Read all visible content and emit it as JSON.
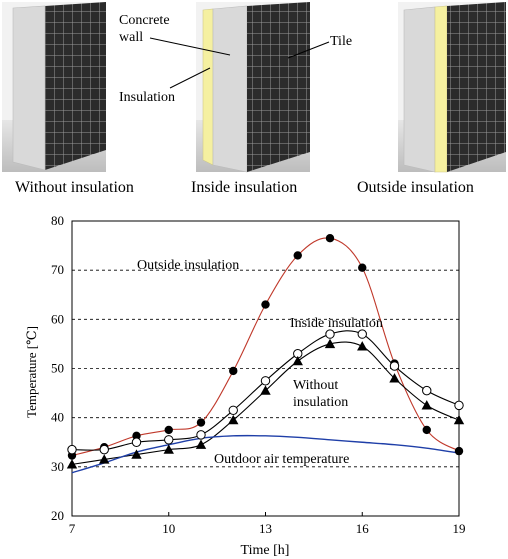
{
  "diagram": {
    "panels": [
      {
        "caption": "Without insulation",
        "insulation": "none"
      },
      {
        "caption": "Inside insulation",
        "insulation": "inside"
      },
      {
        "caption": "Outside insulation",
        "insulation": "outside"
      }
    ],
    "labels": {
      "concrete_wall_line1": "Concrete",
      "concrete_wall_line2": "wall",
      "tile": "Tile",
      "insulation": "Insulation"
    },
    "colors": {
      "tile": "#2b2b2b",
      "grout": "#9a9a9a",
      "concrete": "#d9d9d9",
      "insulation": "#f5f0a0",
      "ground": "#c8c8c8"
    }
  },
  "chart_data": {
    "type": "line",
    "xlabel": "Time [h]",
    "ylabel": "Temperature [℃]",
    "xlim": [
      7,
      19
    ],
    "ylim": [
      20,
      80
    ],
    "xticks": [
      7,
      10,
      13,
      16,
      19
    ],
    "yticks": [
      20,
      30,
      40,
      50,
      60,
      70,
      80
    ],
    "grid": "horizontal dashed",
    "x": [
      7,
      8,
      9,
      10,
      11,
      12,
      13,
      14,
      15,
      16,
      17,
      18,
      19
    ],
    "series": [
      {
        "name": "Outside insulation",
        "marker": "filled-circle",
        "color": "#c0392b",
        "values": [
          32.3,
          34.0,
          36.3,
          37.5,
          39.0,
          49.5,
          63.0,
          73.0,
          76.5,
          70.5,
          51.0,
          37.5,
          33.2
        ]
      },
      {
        "name": "Inside insulation",
        "marker": "open-circle",
        "color": "#000000",
        "values": [
          33.5,
          33.5,
          35.0,
          35.5,
          36.5,
          41.5,
          47.5,
          53.0,
          57.0,
          57.0,
          50.5,
          45.5,
          42.5
        ]
      },
      {
        "name": "Without insulation",
        "marker": "filled-triangle",
        "color": "#000000",
        "values": [
          30.5,
          31.5,
          32.5,
          33.5,
          34.5,
          39.5,
          45.5,
          51.5,
          55.0,
          54.5,
          48.0,
          42.5,
          39.5
        ]
      },
      {
        "name": "Outdoor air temperature",
        "marker": "none",
        "color": "#1f3fa8",
        "values": [
          28.8,
          30.8,
          33.0,
          34.5,
          35.8,
          36.3,
          36.3,
          36.0,
          35.5,
          35.0,
          34.5,
          33.8,
          32.8
        ]
      }
    ],
    "annotations": [
      {
        "text": "Outside insulation"
      },
      {
        "text": "Inside insulation"
      },
      {
        "text": "Without"
      },
      {
        "text": "insulation"
      },
      {
        "text": "Outdoor air temperature"
      }
    ]
  }
}
